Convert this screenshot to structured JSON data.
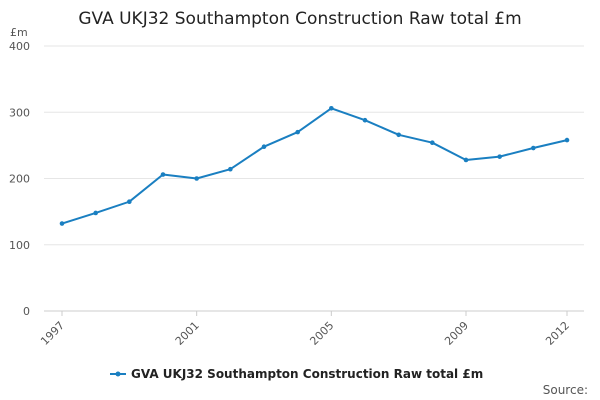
{
  "chart_data": {
    "type": "line",
    "title": "GVA UKJ32 Southampton Construction Raw total £m",
    "ylabel": "£m",
    "xlabel": "",
    "x": [
      1997,
      1998,
      1999,
      2000,
      2001,
      2002,
      2003,
      2004,
      2005,
      2006,
      2007,
      2008,
      2009,
      2010,
      2011,
      2012
    ],
    "x_tick_labels": [
      "1997",
      "2001",
      "2005",
      "2009",
      "2012"
    ],
    "x_tick_values": [
      1997,
      2001,
      2005,
      2009,
      2012
    ],
    "ylim": [
      0,
      400
    ],
    "y_ticks": [
      0,
      100,
      200,
      300,
      400
    ],
    "grid": true,
    "legend_position": "bottom",
    "series": [
      {
        "name": "GVA UKJ32 Southampton Construction Raw total £m",
        "color": "#1a7fc1",
        "values": [
          132,
          148,
          165,
          206,
          200,
          214,
          248,
          270,
          306,
          288,
          266,
          254,
          228,
          233,
          246,
          258
        ]
      }
    ]
  },
  "source_label": "Source:"
}
